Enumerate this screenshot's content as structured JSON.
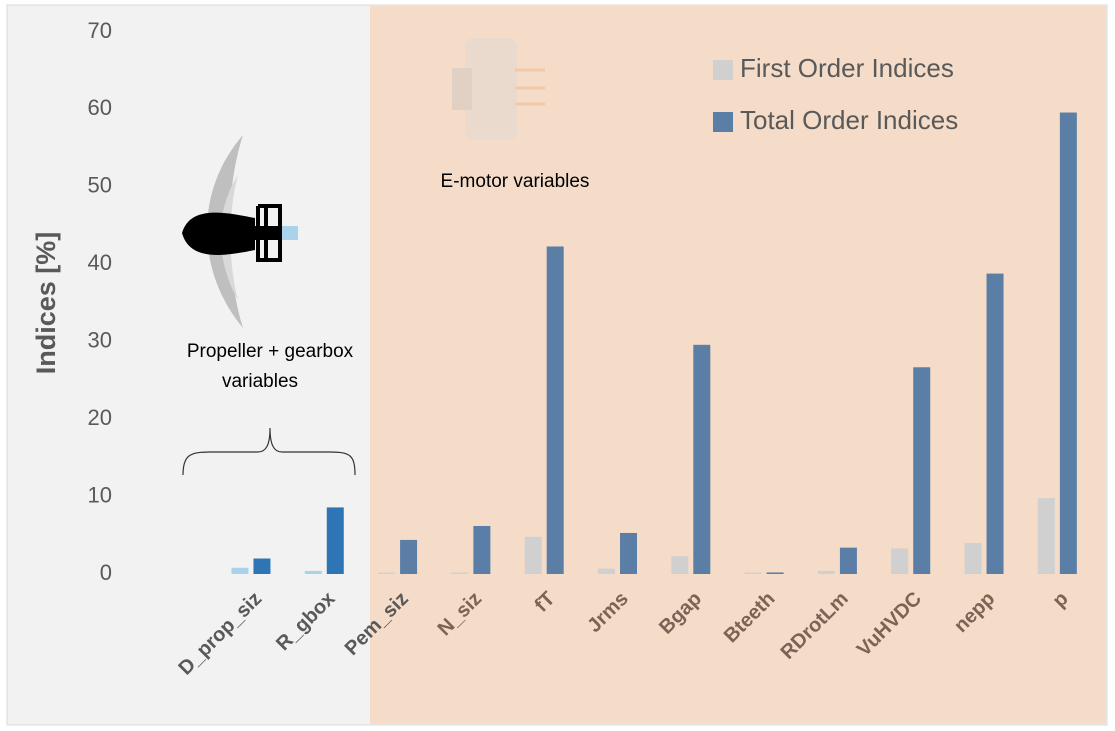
{
  "chart_data": {
    "type": "bar",
    "y_label": "Indices [%]",
    "annotations": [
      "E-motor variables",
      "Propeller + gearbox",
      "variables"
    ],
    "categories": [
      null,
      "D_prop_siz",
      "R_gbox",
      "Pem_siz",
      "N_siz",
      "fT",
      "Jrms",
      "Bgap",
      "Bteeth",
      "RDrotLm",
      "VuHVDC",
      "nepp",
      "p"
    ],
    "series": [
      {
        "name": "First Order Indices",
        "color": "#d0d0d0",
        "colors": [
          null,
          "#a9d3ea",
          "#a9d3ea",
          "#d0d0d0",
          "#d0d0d0",
          "#d0d0d0",
          "#d0d0d0",
          "#d0d0d0",
          "#d0d0d0",
          "#d0d0d0",
          "#d0d0d0",
          "#d0d0d0",
          "#d0d0d0"
        ],
        "values": [
          null,
          0.8,
          0.4,
          0.2,
          0.2,
          4.8,
          0.7,
          2.3,
          0.2,
          0.4,
          3.3,
          4.0,
          9.8
        ]
      },
      {
        "name": "Total Order Indices",
        "color": "#5b7ea6",
        "colors": [
          null,
          "#2e75b6",
          "#2e75b6",
          "#5b7ea6",
          "#5b7ea6",
          "#5b7ea6",
          "#5b7ea6",
          "#5b7ea6",
          "#5b7ea6",
          "#5b7ea6",
          "#5b7ea6",
          "#5b7ea6",
          "#5b7ea6"
        ],
        "values": [
          null,
          2.0,
          8.6,
          4.4,
          6.2,
          42.3,
          5.3,
          29.6,
          0.2,
          3.4,
          26.7,
          38.8,
          59.6
        ]
      }
    ],
    "ylim": [
      0,
      70
    ],
    "yticks": [
      0,
      10,
      20,
      30,
      40,
      50,
      60,
      70
    ],
    "grid": false,
    "legend": "top-right"
  }
}
